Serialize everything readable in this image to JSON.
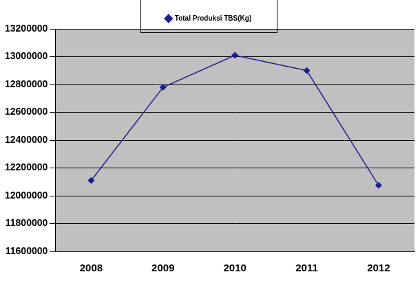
{
  "chart_data": {
    "type": "line",
    "categories": [
      "2008",
      "2009",
      "2010",
      "2011",
      "2012"
    ],
    "series": [
      {
        "name": "Total Produksi TBS(Kg)",
        "color": "#1f1f8c",
        "marker": "diamond",
        "values": [
          12110000,
          12780000,
          13010000,
          12900000,
          12075000
        ]
      }
    ],
    "ylim": [
      11600000,
      13200000
    ],
    "yticks": [
      11600000,
      11800000,
      12000000,
      12200000,
      12400000,
      12600000,
      12800000,
      13000000,
      13200000
    ],
    "grid": true,
    "legend": "top"
  }
}
